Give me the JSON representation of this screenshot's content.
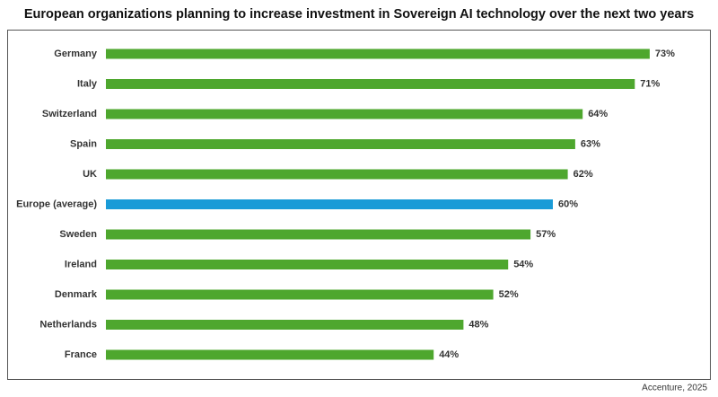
{
  "chart_data": {
    "type": "hbar",
    "title": "European organizations planning to increase investment in Sovereign AI technology over the next two years",
    "categories": [
      "Germany",
      "Italy",
      "Switzerland",
      "Spain",
      "UK",
      "Europe (average)",
      "Sweden",
      "Ireland",
      "Denmark",
      "Netherlands",
      "France"
    ],
    "values": [
      73,
      71,
      64,
      63,
      62,
      60,
      57,
      54,
      52,
      48,
      44
    ],
    "value_labels": [
      "73%",
      "71%",
      "64%",
      "63%",
      "62%",
      "60%",
      "57%",
      "54%",
      "52%",
      "48%",
      "44%"
    ],
    "colors": [
      "#4ea72e",
      "#4ea72e",
      "#4ea72e",
      "#4ea72e",
      "#4ea72e",
      "#1a9bd7",
      "#4ea72e",
      "#4ea72e",
      "#4ea72e",
      "#4ea72e",
      "#4ea72e"
    ],
    "source": "Accenture, 2025"
  }
}
